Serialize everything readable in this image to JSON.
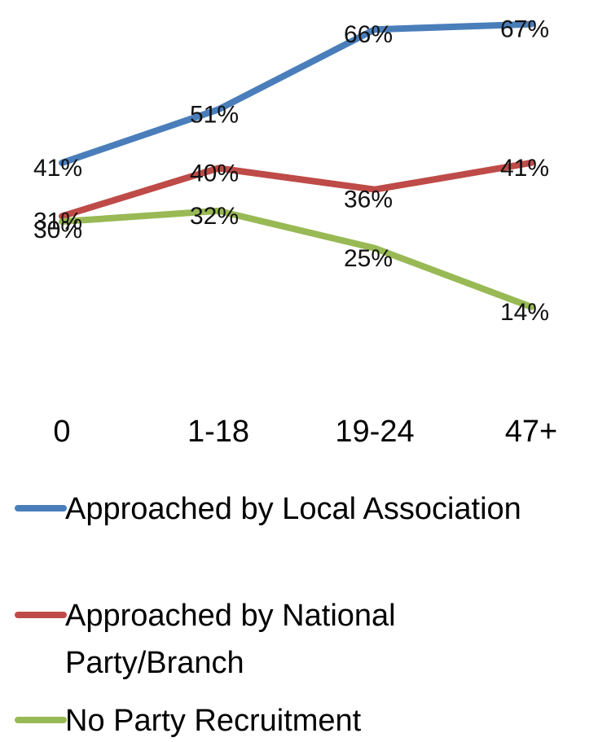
{
  "chart_data": {
    "type": "line",
    "categories": [
      "0",
      "1-18",
      "19-24",
      "47+"
    ],
    "series": [
      {
        "name": "Approached by Local Association",
        "values": [
          41,
          51,
          66,
          67
        ],
        "labels": [
          "41%",
          "51%",
          "66%",
          "67%"
        ],
        "color": "#4a7ebb"
      },
      {
        "name": "Approached by National Party/Branch",
        "values": [
          31,
          40,
          36,
          41
        ],
        "labels": [
          "31%",
          "40%",
          "36%",
          "41%"
        ],
        "color": "#be4b48"
      },
      {
        "name": "No Party Recruitment",
        "values": [
          30,
          32,
          25,
          14
        ],
        "labels": [
          "30%",
          "32%",
          "25%",
          "14%"
        ],
        "color": "#98b954"
      }
    ],
    "title": "",
    "xlabel": "",
    "ylabel": "",
    "grid": false,
    "legend": "bottom"
  }
}
